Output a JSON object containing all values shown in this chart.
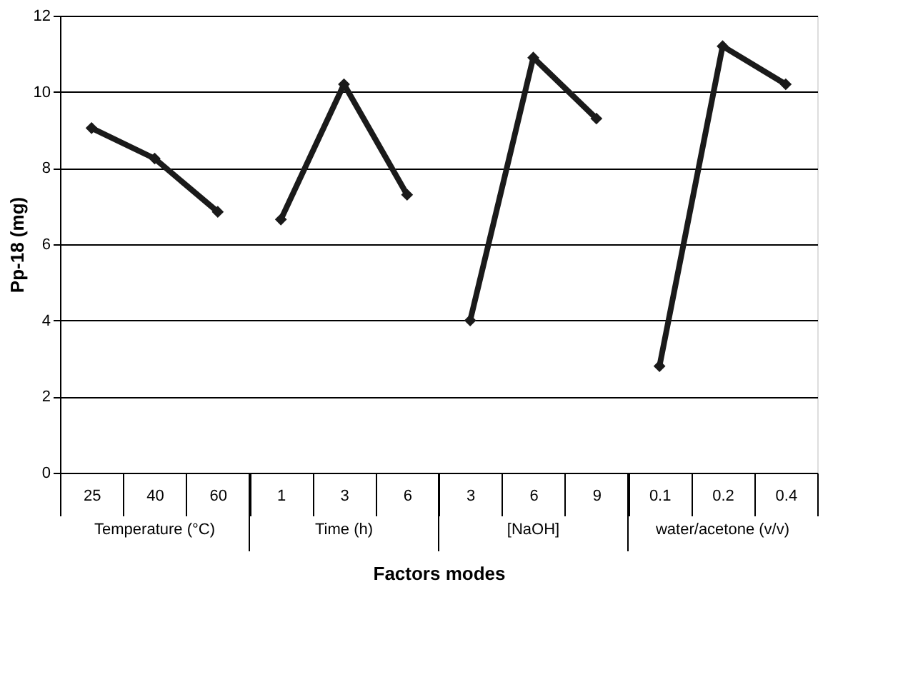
{
  "chart_data": {
    "type": "line",
    "xlabel": "Factors modes",
    "ylabel": "Pp-18 (mg)",
    "categories": [
      "25",
      "40",
      "60",
      "1",
      "3",
      "6",
      "3",
      "6",
      "9",
      "0.1",
      "0.2",
      "0.4"
    ],
    "series": [
      {
        "color": "#1a1a1a",
        "values": [
          9.05,
          8.25,
          6.85,
          null,
          null,
          null,
          null,
          null,
          null,
          null,
          null,
          null
        ]
      },
      {
        "color": "#1a1a1a",
        "values": [
          null,
          null,
          null,
          6.65,
          10.2,
          7.3,
          null,
          null,
          null,
          null,
          null,
          null
        ]
      },
      {
        "color": "#1a1a1a",
        "values": [
          null,
          null,
          null,
          null,
          null,
          null,
          4.0,
          10.9,
          9.3,
          null,
          null,
          null
        ]
      },
      {
        "color": "#1a1a1a",
        "values": [
          null,
          null,
          null,
          null,
          null,
          null,
          null,
          null,
          null,
          2.8,
          11.2,
          10.2
        ]
      }
    ],
    "annotations": [
      "Temperature (°C)",
      "Time (h)",
      "[NaOH]",
      "water/acetone (v/v)"
    ],
    "ylim": [
      0,
      12
    ],
    "yticks": [
      0,
      2,
      4,
      6,
      8,
      10,
      12
    ],
    "grid": "y",
    "marker": "diamond",
    "line_style": "solid",
    "legend": false
  }
}
